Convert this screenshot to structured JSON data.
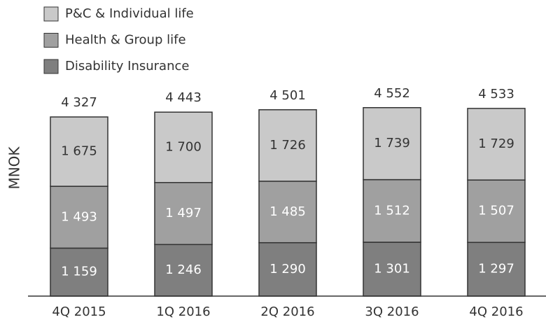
{
  "chart_data": {
    "type": "stacked_bar",
    "y_label": "MNOK",
    "categories": [
      "4Q 2015",
      "1Q 2016",
      "2Q 2016",
      "3Q 2016",
      "4Q 2016"
    ],
    "series": [
      {
        "name": "Disability Insurance",
        "color": "#7f7f7f",
        "label_color": "#ffffff",
        "values": [
          1159,
          1246,
          1290,
          1301,
          1297
        ],
        "value_labels": [
          "1 159",
          "1 246",
          "1 290",
          "1 301",
          "1 297"
        ]
      },
      {
        "name": "Health & Group life",
        "color": "#a0a0a0",
        "label_color": "#ffffff",
        "values": [
          1493,
          1497,
          1485,
          1512,
          1507
        ],
        "value_labels": [
          "1 493",
          "1 497",
          "1 485",
          "1 512",
          "1 507"
        ]
      },
      {
        "name": "P&C  & Individual life",
        "color": "#c9c9c9",
        "label_color": "#333333",
        "values": [
          1675,
          1700,
          1726,
          1739,
          1729
        ],
        "value_labels": [
          "1 675",
          "1 700",
          "1 726",
          "1 739",
          "1 729"
        ]
      }
    ],
    "totals": {
      "values": [
        4327,
        4443,
        4501,
        4552,
        4533
      ],
      "value_labels": [
        "4 327",
        "4 443",
        "4 501",
        "4 552",
        "4 533"
      ]
    },
    "ylim": [
      0,
      4700
    ],
    "legend": "top-left"
  }
}
